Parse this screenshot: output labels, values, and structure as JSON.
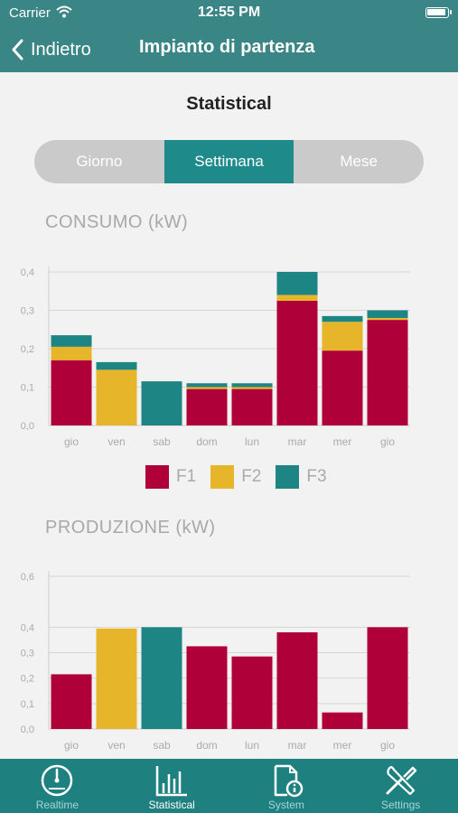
{
  "status_bar": {
    "carrier": "Carrier",
    "time": "12:55 PM"
  },
  "nav": {
    "back_label": "Indietro",
    "title": "Impianto di partenza"
  },
  "page_heading": "Statistical",
  "segments": [
    {
      "label": "Giorno",
      "active": false
    },
    {
      "label": "Settimana",
      "active": true
    },
    {
      "label": "Mese",
      "active": false
    }
  ],
  "colors": {
    "f1": "#b0003a",
    "f2": "#e6b529",
    "f3": "#1e8585",
    "accent": "#3a8585",
    "tab_bar": "#1f8080"
  },
  "consumo": {
    "title": "CONSUMO (kW)"
  },
  "produzione": {
    "title": "PRODUZIONE (kW)"
  },
  "legend": [
    {
      "label": "F1",
      "color": "#b0003a"
    },
    {
      "label": "F2",
      "color": "#e6b529"
    },
    {
      "label": "F3",
      "color": "#1e8585"
    }
  ],
  "tabs": [
    {
      "label": "Realtime",
      "icon": "gauge-icon",
      "active": false
    },
    {
      "label": "Statistical",
      "icon": "bar-chart-icon",
      "active": true
    },
    {
      "label": "System",
      "icon": "document-info-icon",
      "active": false
    },
    {
      "label": "Settings",
      "icon": "tools-icon",
      "active": false
    }
  ],
  "chart_data": [
    {
      "type": "bar",
      "stacked": true,
      "title": "CONSUMO (kW)",
      "categories": [
        "gio",
        "ven",
        "sab",
        "dom",
        "lun",
        "mar",
        "mer",
        "gio"
      ],
      "ylim": [
        0,
        0.4
      ],
      "yticks": [
        "0,0",
        "0,1",
        "0,2",
        "0,3",
        "0,4"
      ],
      "grid": true,
      "legend_position": "bottom",
      "series": [
        {
          "name": "F1",
          "color": "#b0003a",
          "values": [
            0.17,
            0,
            0,
            0.095,
            0.095,
            0.325,
            0.195,
            0.275
          ]
        },
        {
          "name": "F2",
          "color": "#e6b529",
          "values": [
            0.035,
            0.145,
            0,
            0.005,
            0.005,
            0.015,
            0.075,
            0.005
          ]
        },
        {
          "name": "F3",
          "color": "#1e8585",
          "values": [
            0.03,
            0.02,
            0.115,
            0.01,
            0.01,
            0.06,
            0.015,
            0.02
          ]
        }
      ]
    },
    {
      "type": "bar",
      "title": "PRODUZIONE (kW)",
      "categories": [
        "gio",
        "ven",
        "sab",
        "dom",
        "lun",
        "mar",
        "mer",
        "gio"
      ],
      "ylim": [
        0,
        0.6
      ],
      "yticks": [
        "0,0",
        "0,1",
        "0,2",
        "0,3",
        "0,4",
        "0,6"
      ],
      "grid": true,
      "values": [
        0.215,
        0.395,
        0.4,
        0.325,
        0.285,
        0.38,
        0.065,
        0.4
      ],
      "bar_colors": [
        "#b0003a",
        "#e6b529",
        "#1e8585",
        "#b0003a",
        "#b0003a",
        "#b0003a",
        "#b0003a",
        "#b0003a"
      ]
    }
  ]
}
